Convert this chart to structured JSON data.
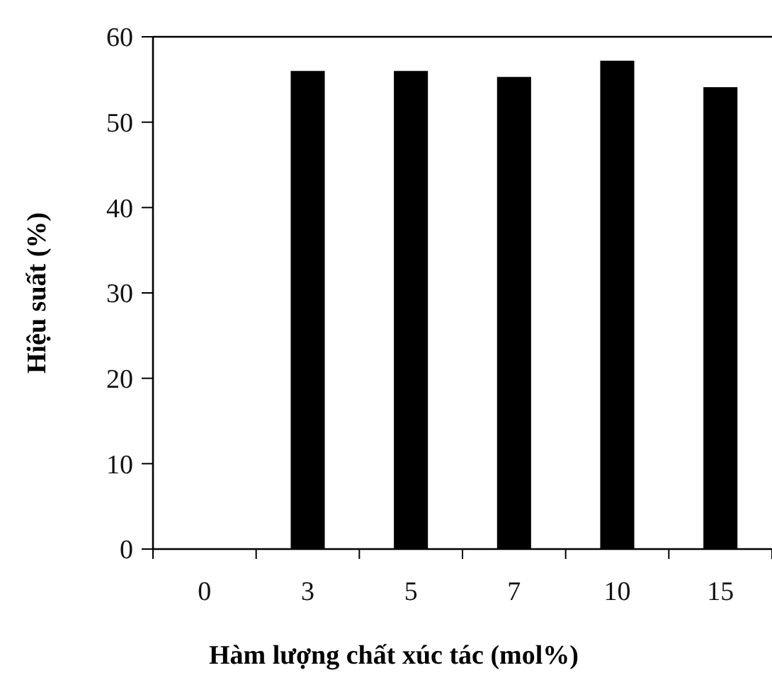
{
  "chart_data": {
    "type": "bar",
    "xlabel": "Hàm lượng chất xúc tác (mol%)",
    "ylabel": "Hiệu suất  (%)",
    "categories": [
      "0",
      "3",
      "5",
      "7",
      "10",
      "15"
    ],
    "values": [
      0,
      56,
      56,
      55.3,
      57.2,
      54.1
    ],
    "color": "#000000",
    "ylim": [
      0,
      60
    ],
    "yticks": [
      0,
      10,
      20,
      30,
      40,
      50,
      60
    ],
    "grid": false
  }
}
